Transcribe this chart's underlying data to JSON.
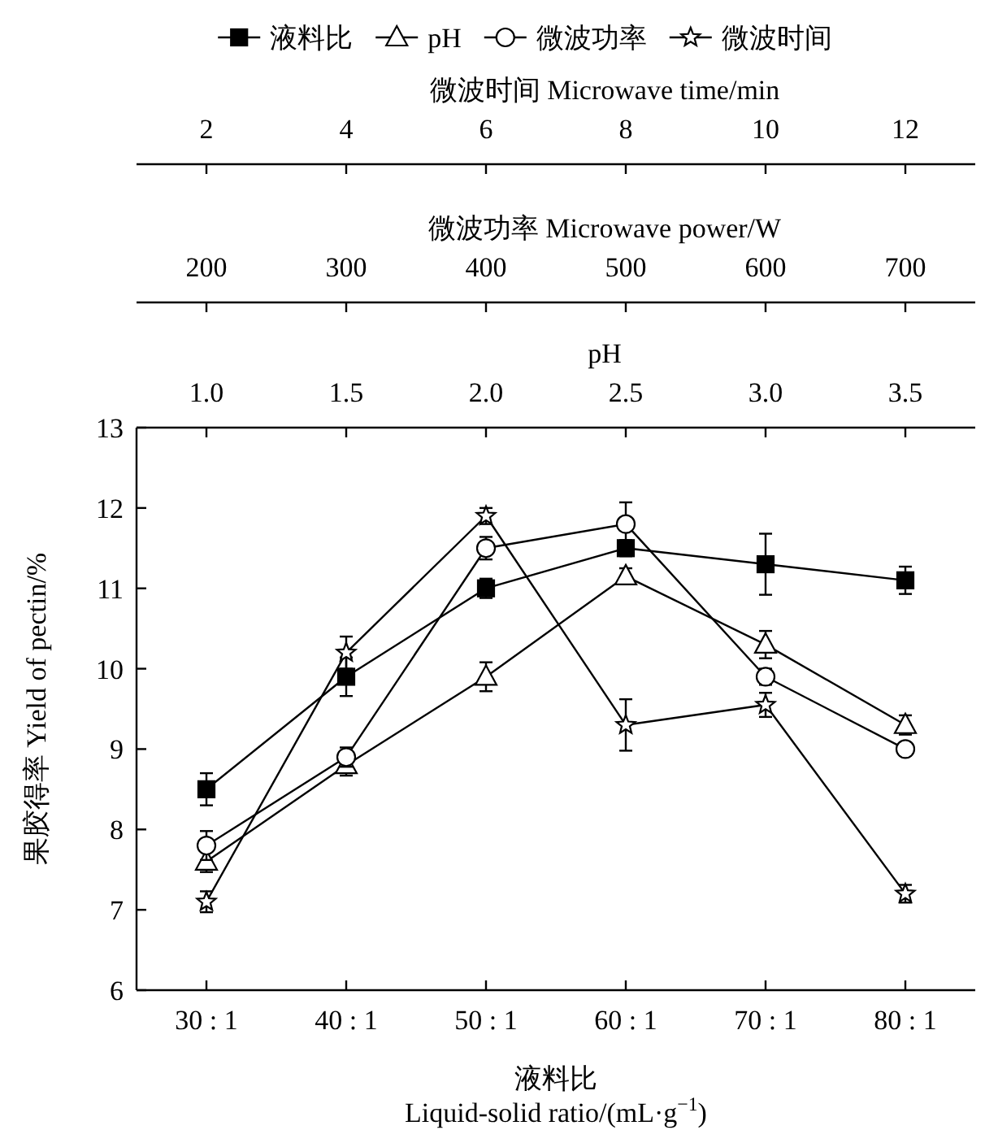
{
  "chart_data": {
    "type": "line",
    "categories": [
      "30 : 1",
      "40 : 1",
      "50 : 1",
      "60 : 1",
      "70 : 1",
      "80 : 1"
    ],
    "xlabel": "液料比\nLiquid-solid ratio/(mL·g$^{−1}$)",
    "ylabel": "果胶得率 Yield of pectin/%",
    "ylim": [
      6,
      13
    ],
    "yticks": [
      6,
      7,
      8,
      9,
      10,
      11,
      12,
      13
    ],
    "x2label": "pH",
    "x2lim": [
      0.75,
      3.75
    ],
    "x2ticks": [
      {
        "value": 1,
        "label": "1.0"
      },
      {
        "value": 1.5,
        "label": "1.5"
      },
      {
        "value": 2,
        "label": "2.0"
      },
      {
        "value": 2.5,
        "label": "2.5"
      },
      {
        "value": 3,
        "label": "3.0"
      },
      {
        "value": 3.5,
        "label": "3.5"
      }
    ],
    "legend": "top",
    "grid": false,
    "annotations": [
      "微波时间 Microwave time/min",
      {
        "text": "2",
        "x": "30 : 1"
      },
      {
        "text": "4",
        "x": "40 : 1"
      },
      {
        "text": "6",
        "x": "50 : 1"
      },
      {
        "text": "8",
        "x": "60 : 1"
      },
      {
        "text": "10",
        "x": "70 : 1"
      },
      {
        "text": "12",
        "x": "80 : 1"
      },
      "微波功率 Microwave power/W",
      {
        "text": "200",
        "x": "30 : 1"
      },
      {
        "text": "300",
        "x": "40 : 1"
      },
      {
        "text": "400",
        "x": "50 : 1"
      },
      {
        "text": "500",
        "x": "60 : 1"
      },
      {
        "text": "600",
        "x": "70 : 1"
      },
      {
        "text": "700",
        "x": "80 : 1"
      }
    ],
    "series": [
      {
        "name": "液料比",
        "color": "#000000",
        "marker": "square",
        "values": [
          8.5,
          9.9,
          11.0,
          11.5,
          11.3,
          11.1
        ],
        "errors": [
          0.2,
          0.24,
          0.12,
          0.1,
          0.38,
          0.17
        ]
      },
      {
        "name": "pH",
        "color": "#000000",
        "marker": "triangle",
        "axis": "x2",
        "x": [
          1,
          1.5,
          2,
          2.5,
          3,
          3.5
        ],
        "values": [
          7.6,
          8.8,
          9.9,
          11.15,
          10.3,
          9.3
        ],
        "errors": [
          0.13,
          0.13,
          0.18,
          0.1,
          0.17,
          0.12
        ]
      },
      {
        "name": "微波功率",
        "color": "#000000",
        "marker": "circle",
        "values": [
          7.8,
          8.9,
          11.5,
          11.8,
          9.9,
          9.0
        ],
        "errors": [
          0.18,
          0.12,
          0.14,
          0.27,
          0.1,
          0.08
        ]
      },
      {
        "name": "微波时间",
        "color": "#000000",
        "marker": "star",
        "values": [
          7.1,
          10.2,
          11.9,
          9.3,
          9.55,
          7.2
        ],
        "errors": [
          0.13,
          0.2,
          0.1,
          0.32,
          0.15,
          0.11
        ]
      }
    ]
  }
}
